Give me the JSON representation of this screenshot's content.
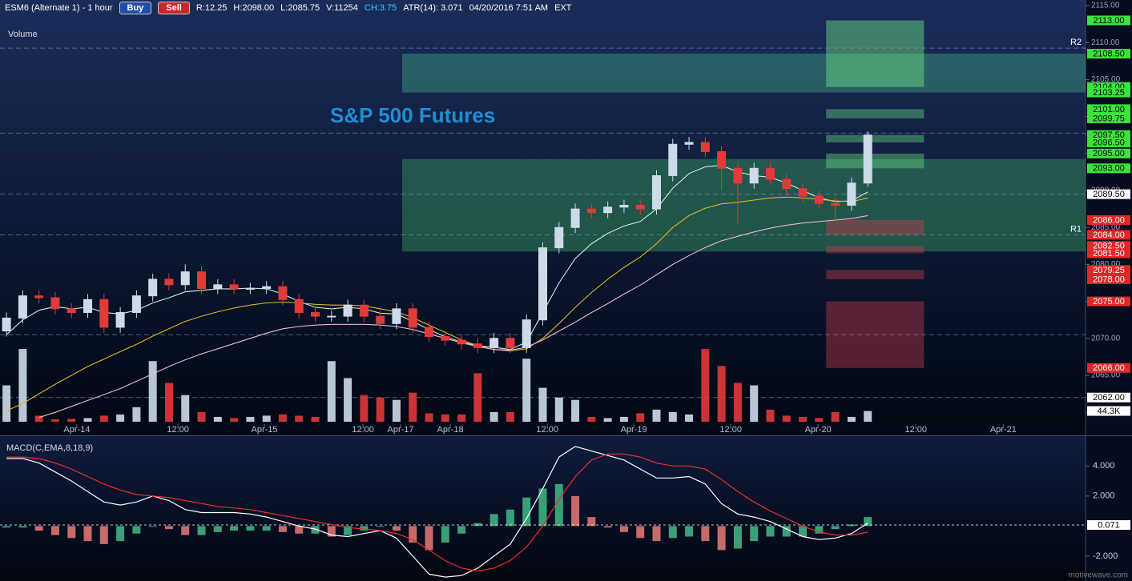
{
  "header": {
    "symbol": "ESM6 (Alternate 1) - 1 hour",
    "buy": "Buy",
    "sell": "Sell",
    "stats": [
      "R:12.25",
      "H:2098.00",
      "L:2085.75",
      "V:11254",
      "CH:3.75",
      "ATR(14): 3.071",
      "04/20/2016 7:51 AM",
      "EXT"
    ]
  },
  "watermark": "motivewave.com",
  "chart_data": [
    {
      "type": "candlestick",
      "title": "S&P 500 Futures",
      "x": [
        0,
        1,
        2,
        3,
        4,
        5,
        6,
        7,
        8,
        9,
        10,
        11,
        12,
        13,
        14,
        15,
        16,
        17,
        18,
        19,
        20,
        21,
        22,
        23,
        24,
        25,
        26,
        27,
        28,
        29,
        30,
        31,
        32,
        33,
        34,
        35,
        36,
        37,
        38,
        39,
        40,
        41,
        42,
        43,
        44,
        45,
        46,
        47,
        48,
        49,
        50,
        51,
        52,
        53
      ],
      "xlim": [
        -0.4,
        66.4
      ],
      "xticks": [
        {
          "value": 4.33,
          "label": "Apr-14"
        },
        {
          "value": 10.55,
          "label": "12:00"
        },
        {
          "value": 15.87,
          "label": "Apr-15"
        },
        {
          "value": 21.94,
          "label": "12:00"
        },
        {
          "value": 24.25,
          "label": "Apr-17"
        },
        {
          "value": 27.31,
          "label": "Apr-18"
        },
        {
          "value": 33.28,
          "label": "12:00"
        },
        {
          "value": 38.6,
          "label": "Apr-19"
        },
        {
          "value": 44.57,
          "label": "12:00"
        },
        {
          "value": 49.94,
          "label": "Apr-20"
        },
        {
          "value": 55.96,
          "label": "12:00"
        },
        {
          "value": 61.34,
          "label": "Apr-21"
        }
      ],
      "ylim": [
        2058.4,
        2115.76
      ],
      "yticks": [
        {
          "value": 2060,
          "label": "2060.00"
        },
        {
          "value": 2065,
          "label": "2065.00"
        },
        {
          "value": 2070,
          "label": "2070.00"
        },
        {
          "value": 2075,
          "label": "2075.00"
        },
        {
          "value": 2080,
          "label": "2080.00"
        },
        {
          "value": 2085,
          "label": "2085.00"
        },
        {
          "value": 2090,
          "label": "2090.00"
        },
        {
          "value": 2095,
          "label": "2095.00"
        },
        {
          "value": 2100,
          "label": "2100.00"
        },
        {
          "value": 2105,
          "label": "2105.00"
        },
        {
          "value": 2110,
          "label": "2110.00"
        },
        {
          "value": 2115,
          "label": "2115.00"
        }
      ],
      "open": [
        2071.0,
        2072.75,
        2075.75,
        2075.5,
        2074.0,
        2073.5,
        2075.25,
        2071.5,
        2073.5,
        2075.75,
        2078.0,
        2077.25,
        2079.0,
        2076.75,
        2077.25,
        2076.75,
        2076.75,
        2077.0,
        2075.25,
        2073.5,
        2073.0,
        2073.0,
        2074.5,
        2073.0,
        2072.0,
        2074.0,
        2071.5,
        2070.25,
        2069.75,
        2069.25,
        2068.75,
        2070.0,
        2068.75,
        2072.5,
        2082.25,
        2085.0,
        2087.5,
        2087.0,
        2087.75,
        2088.0,
        2087.5,
        2092.0,
        2096.25,
        2096.5,
        2095.25,
        2093.0,
        2091.0,
        2093.0,
        2091.5,
        2090.25,
        2089.25,
        2088.25,
        2088.0,
        2091.0
      ],
      "high": [
        2073.5,
        2076.5,
        2076.5,
        2076.25,
        2074.75,
        2076.0,
        2076.0,
        2074.25,
        2076.5,
        2078.75,
        2078.75,
        2080.0,
        2079.75,
        2078.0,
        2078.0,
        2077.5,
        2077.75,
        2077.75,
        2076.0,
        2074.25,
        2073.75,
        2075.25,
        2075.25,
        2073.75,
        2074.75,
        2074.75,
        2072.25,
        2071.0,
        2070.5,
        2070.0,
        2070.75,
        2070.75,
        2073.25,
        2083.0,
        2085.75,
        2088.25,
        2088.25,
        2088.5,
        2088.75,
        2088.75,
        2092.75,
        2097.0,
        2097.25,
        2097.25,
        2096.0,
        2093.75,
        2093.75,
        2093.75,
        2092.25,
        2091.0,
        2090.0,
        2089.0,
        2091.75,
        2098.0
      ],
      "low": [
        2070.25,
        2072.0,
        2074.75,
        2073.25,
        2072.75,
        2072.75,
        2070.75,
        2070.75,
        2072.75,
        2075.0,
        2076.5,
        2076.5,
        2076.0,
        2076.0,
        2076.0,
        2076.0,
        2076.0,
        2074.5,
        2072.75,
        2072.25,
        2072.25,
        2072.25,
        2072.25,
        2071.25,
        2071.25,
        2070.75,
        2069.5,
        2069.0,
        2068.5,
        2068.0,
        2068.0,
        2068.0,
        2068.0,
        2071.75,
        2081.5,
        2084.25,
        2086.25,
        2086.25,
        2087.0,
        2086.75,
        2086.75,
        2091.25,
        2095.5,
        2094.5,
        2090.0,
        2085.5,
        2090.25,
        2090.75,
        2089.5,
        2088.5,
        2087.5,
        2085.75,
        2087.25,
        2090.5
      ],
      "close": [
        2072.75,
        2075.75,
        2075.5,
        2074.0,
        2073.5,
        2075.25,
        2071.5,
        2073.5,
        2075.75,
        2078.0,
        2077.25,
        2079.0,
        2076.75,
        2077.25,
        2076.75,
        2076.75,
        2077.0,
        2075.25,
        2073.5,
        2073.0,
        2073.0,
        2074.5,
        2073.0,
        2072.0,
        2074.0,
        2071.5,
        2070.25,
        2069.75,
        2069.25,
        2068.75,
        2070.0,
        2068.75,
        2072.5,
        2082.25,
        2085.0,
        2087.5,
        2087.0,
        2087.75,
        2088.0,
        2087.5,
        2092.0,
        2096.25,
        2096.5,
        2095.25,
        2093.0,
        2091.0,
        2093.0,
        2091.5,
        2090.25,
        2089.25,
        2088.25,
        2088.0,
        2091.0,
        2097.5
      ],
      "up_color": "#cddbe8",
      "down_color": "#e03a3a",
      "series": [
        {
          "color": "#cfeee0",
          "values": [
            2070.5,
            2072.5,
            2073.8,
            2074.3,
            2074.0,
            2074.2,
            2073.5,
            2073.3,
            2073.8,
            2074.8,
            2075.5,
            2076.3,
            2076.5,
            2076.7,
            2076.7,
            2076.8,
            2076.7,
            2076.0,
            2075.0,
            2074.2,
            2074.0,
            2074.2,
            2074.0,
            2073.4,
            2073.3,
            2072.3,
            2071.2,
            2070.2,
            2069.5,
            2069.0,
            2068.8,
            2068.5,
            2069.5,
            2073.5,
            2077.5,
            2080.8,
            2082.8,
            2084.2,
            2085.2,
            2085.8,
            2087.5,
            2090.3,
            2092.3,
            2093.2,
            2093.4,
            2092.5,
            2092.0,
            2091.8,
            2091.0,
            2090.0,
            2089.0,
            2088.5,
            2088.6,
            2089.8
          ]
        },
        {
          "color": "#e6b422",
          "values": [
            2060.2,
            2061.2,
            2062.5,
            2063.8,
            2065.0,
            2066.2,
            2067.2,
            2068.2,
            2069.2,
            2070.3,
            2071.3,
            2072.3,
            2073.0,
            2073.6,
            2074.1,
            2074.5,
            2074.8,
            2074.9,
            2074.8,
            2074.6,
            2074.5,
            2074.5,
            2074.4,
            2074.0,
            2073.6,
            2072.8,
            2071.8,
            2070.8,
            2069.8,
            2069.0,
            2068.5,
            2068.3,
            2068.6,
            2070.0,
            2072.0,
            2074.2,
            2076.2,
            2078.0,
            2079.6,
            2081.0,
            2082.8,
            2085.0,
            2086.6,
            2087.6,
            2088.2,
            2088.4,
            2088.7,
            2089.0,
            2089.1,
            2089.0,
            2088.8,
            2088.6,
            2088.5,
            2089.0
          ]
        },
        {
          "color": "#eab8d2",
          "values": [
            null,
            null,
            2059.3,
            2060.0,
            2060.8,
            2061.6,
            2062.4,
            2063.2,
            2064.2,
            2065.2,
            2066.2,
            2067.1,
            2067.9,
            2068.6,
            2069.3,
            2070.0,
            2070.7,
            2071.3,
            2071.6,
            2071.8,
            2071.9,
            2071.9,
            2071.9,
            2071.8,
            2071.6,
            2071.2,
            2070.6,
            2070.0,
            2069.4,
            2068.9,
            2068.5,
            2068.4,
            2068.8,
            2069.8,
            2071.0,
            2072.2,
            2073.5,
            2074.7,
            2076.0,
            2077.2,
            2078.6,
            2080.0,
            2081.2,
            2082.3,
            2083.2,
            2083.8,
            2084.4,
            2084.9,
            2085.3,
            2085.6,
            2085.8,
            2086.0,
            2086.2,
            2086.6
          ]
        }
      ],
      "volume": {
        "label": "Volume",
        "ylim": [
          0,
          330000
        ],
        "values": [
          150000,
          300000,
          25000,
          10000,
          12000,
          15000,
          25000,
          30000,
          60000,
          250000,
          160000,
          110000,
          40000,
          20000,
          15000,
          20000,
          25000,
          30000,
          25000,
          20000,
          250000,
          180000,
          110000,
          100000,
          90000,
          120000,
          35000,
          30000,
          30000,
          200000,
          40000,
          40000,
          260000,
          140000,
          100000,
          90000,
          20000,
          15000,
          20000,
          35000,
          50000,
          40000,
          30000,
          300000,
          230000,
          160000,
          150000,
          50000,
          25000,
          20000,
          15000,
          40000,
          20000,
          44300
        ],
        "marker": {
          "value": 44300,
          "label": "44.3K"
        }
      },
      "zones": [
        {
          "top": 2108.5,
          "bottom": 2103.25,
          "from": 24.35,
          "to": 66.4,
          "color": "rgba(70,190,140,0.38)"
        },
        {
          "top": 2094.25,
          "bottom": 2081.75,
          "from": 24.35,
          "to": 66.4,
          "color": "rgba(70,190,110,0.36)"
        },
        {
          "top": 2113.0,
          "bottom": 2104.0,
          "from": 50.44,
          "to": 56.46,
          "color": "rgba(110,230,130,0.45)"
        },
        {
          "top": 2101.0,
          "bottom": 2099.75,
          "from": 50.44,
          "to": 56.46,
          "color": "rgba(110,230,130,0.4)"
        },
        {
          "top": 2097.5,
          "bottom": 2096.5,
          "from": 50.44,
          "to": 56.46,
          "color": "rgba(110,230,130,0.4)"
        },
        {
          "top": 2095.0,
          "bottom": 2093.0,
          "from": 50.44,
          "to": 56.46,
          "color": "rgba(110,230,130,0.4)"
        },
        {
          "top": 2086.0,
          "bottom": 2084.0,
          "from": 50.44,
          "to": 56.46,
          "color": "rgba(210,60,80,0.4)"
        },
        {
          "top": 2082.5,
          "bottom": 2081.5,
          "from": 50.44,
          "to": 56.46,
          "color": "rgba(210,60,80,0.4)"
        },
        {
          "top": 2079.25,
          "bottom": 2078.0,
          "from": 50.44,
          "to": 56.46,
          "color": "rgba(210,60,80,0.4)"
        },
        {
          "top": 2075.0,
          "bottom": 2066.0,
          "from": 50.44,
          "to": 56.46,
          "color": "rgba(210,60,80,0.4)"
        }
      ],
      "lines": [
        {
          "value": 2109.25,
          "label": "R2"
        },
        {
          "value": 2084.0,
          "label": "R1"
        },
        {
          "value": 2097.75
        },
        {
          "value": 2089.5
        },
        {
          "value": 2070.5
        },
        {
          "value": 2062.0
        }
      ],
      "levels": [
        {
          "value": 2113.0,
          "label": "2113.00",
          "color": "#3be23b"
        },
        {
          "value": 2108.5,
          "label": "2108.50",
          "color": "#3be23b"
        },
        {
          "value": 2104.0,
          "label": "2104.00",
          "color": "#3be23b"
        },
        {
          "value": 2103.25,
          "label": "2103.25",
          "color": "#3be23b"
        },
        {
          "value": 2101.0,
          "label": "2101.00",
          "color": "#3be23b"
        },
        {
          "value": 2099.75,
          "label": "2099.75",
          "color": "#3be23b"
        },
        {
          "value": 2097.5,
          "label": "2097.50",
          "color": "#3be23b"
        },
        {
          "value": 2096.5,
          "label": "2096.50",
          "color": "#3be23b"
        },
        {
          "value": 2095.0,
          "label": "2095.00",
          "color": "#3be23b"
        },
        {
          "value": 2093.0,
          "label": "2093.00",
          "color": "#3be23b"
        },
        {
          "value": 2089.5,
          "label": "2089.50",
          "color": "#ffffff"
        },
        {
          "value": 2086.0,
          "label": "2086.00",
          "color": "#e02828"
        },
        {
          "value": 2084.0,
          "label": "2084.00",
          "color": "#e02828"
        },
        {
          "value": 2082.5,
          "label": "2082.50",
          "color": "#e02828"
        },
        {
          "value": 2081.5,
          "label": "2081.50",
          "color": "#e02828"
        },
        {
          "value": 2079.25,
          "label": "2079.25",
          "color": "#e02828"
        },
        {
          "value": 2078.0,
          "label": "2078.00",
          "color": "#e02828"
        },
        {
          "value": 2075.0,
          "label": "2075.00",
          "color": "#e02828"
        },
        {
          "value": 2066.0,
          "label": "2066.00",
          "color": "#e02828"
        },
        {
          "value": 2062.0,
          "label": "2062.00",
          "color": "#ffffff"
        }
      ]
    },
    {
      "type": "macd",
      "title": "MACD(C,EMA,8,18,9)",
      "ylim": [
        -3.66,
        5.99
      ],
      "yticks": [
        {
          "value": 4,
          "label": "4.000"
        },
        {
          "value": 2,
          "label": "2.000"
        },
        {
          "value": -2,
          "label": "-2.000"
        }
      ],
      "marker": {
        "value": 0.071,
        "label": "0.071"
      },
      "histogram": [
        -0.1,
        -0.1,
        -0.3,
        -0.6,
        -0.8,
        -1.0,
        -1.2,
        -1.0,
        -0.5,
        0.0,
        -0.2,
        -0.6,
        -0.6,
        -0.4,
        -0.3,
        -0.3,
        -0.3,
        -0.4,
        -0.5,
        -0.5,
        -0.7,
        -0.6,
        -0.3,
        0.0,
        -0.3,
        -1.1,
        -1.6,
        -1.1,
        -0.5,
        0.2,
        0.8,
        1.1,
        1.9,
        2.5,
        2.8,
        2.0,
        0.6,
        -0.1,
        -0.4,
        -0.8,
        -1.0,
        -0.8,
        -0.7,
        -1.0,
        -1.6,
        -1.5,
        -1.0,
        -0.7,
        -0.7,
        -0.7,
        -0.5,
        -0.2,
        0.1,
        0.6
      ],
      "rise_color": "#3a9f78",
      "fall_color": "#c86a6a",
      "series": [
        {
          "color": "#ffffff",
          "values": [
            4.5,
            4.5,
            4.2,
            3.6,
            3.0,
            2.3,
            1.6,
            1.4,
            1.6,
            2.0,
            1.7,
            1.1,
            0.9,
            0.9,
            0.9,
            0.8,
            0.6,
            0.3,
            0.0,
            -0.2,
            -0.6,
            -0.7,
            -0.5,
            -0.3,
            -0.8,
            -2.0,
            -3.2,
            -3.4,
            -3.3,
            -2.8,
            -2.0,
            -1.2,
            0.5,
            2.5,
            4.6,
            5.3,
            5.0,
            4.7,
            4.4,
            3.8,
            3.2,
            3.2,
            3.3,
            2.8,
            1.5,
            0.8,
            0.6,
            0.3,
            -0.2,
            -0.7,
            -0.9,
            -0.8,
            -0.5,
            0.2
          ]
        },
        {
          "color": "#e83030",
          "values": [
            4.6,
            4.6,
            4.5,
            4.2,
            3.8,
            3.3,
            2.8,
            2.4,
            2.1,
            2.0,
            1.9,
            1.7,
            1.5,
            1.3,
            1.2,
            1.1,
            0.9,
            0.7,
            0.5,
            0.3,
            0.1,
            -0.1,
            -0.2,
            -0.3,
            -0.5,
            -0.9,
            -1.6,
            -2.3,
            -2.8,
            -3.0,
            -2.8,
            -2.3,
            -1.4,
            0.0,
            1.8,
            3.3,
            4.4,
            4.8,
            4.8,
            4.6,
            4.2,
            4.0,
            4.0,
            3.8,
            3.1,
            2.3,
            1.6,
            1.0,
            0.5,
            0.0,
            -0.4,
            -0.6,
            -0.6,
            -0.4
          ]
        }
      ]
    }
  ]
}
